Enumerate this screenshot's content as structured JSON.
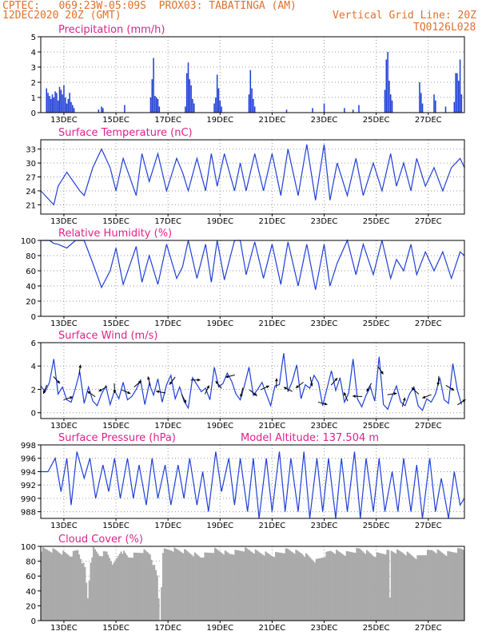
{
  "header": {
    "line1_left": "CPTEC:   069:23W-05:09S  PROX03: TABATINGA (AM)",
    "line2_left": "12DEC2020 20Z (GMT)",
    "line2_right": "Vertical Grid Line: 20Z",
    "line3_right": "TQ0126L028"
  },
  "colors": {
    "header": "#e0702a",
    "title": "#e0208a",
    "line": "#1f3fd6",
    "cloud": "#aaaaaa",
    "grid": "#999999"
  },
  "date_ticks": [
    "13DEC",
    "15DEC",
    "17DEC",
    "19DEC",
    "21DEC",
    "23DEC",
    "25DEC",
    "27DEC"
  ],
  "chart_data": [
    {
      "type": "bar",
      "title": "Precipitation (mm/h)",
      "ylim": [
        0,
        5
      ],
      "yticks": [
        "0",
        "1",
        "2",
        "3",
        "4",
        "5"
      ],
      "x_unit": "hours since 12DEC2020 20Z",
      "points": [
        [
          4,
          1.6
        ],
        [
          5,
          1.3
        ],
        [
          6,
          1.1
        ],
        [
          7,
          0.9
        ],
        [
          8,
          1.2
        ],
        [
          9,
          1.0
        ],
        [
          10,
          1.4
        ],
        [
          11,
          1.3
        ],
        [
          12,
          0.8
        ],
        [
          13,
          1.7
        ],
        [
          14,
          1.5
        ],
        [
          15,
          1.2
        ],
        [
          16,
          1.8
        ],
        [
          17,
          1.0
        ],
        [
          18,
          0.6
        ],
        [
          19,
          0.9
        ],
        [
          20,
          1.3
        ],
        [
          21,
          0.7
        ],
        [
          22,
          0.5
        ],
        [
          23,
          0.3
        ],
        [
          40,
          0.2
        ],
        [
          42,
          0.4
        ],
        [
          43,
          0.3
        ],
        [
          58,
          0.5
        ],
        [
          76,
          1.0
        ],
        [
          77,
          2.2
        ],
        [
          78,
          3.6
        ],
        [
          79,
          1.1
        ],
        [
          80,
          1.0
        ],
        [
          81,
          0.9
        ],
        [
          82,
          0.4
        ],
        [
          100,
          0.4
        ],
        [
          101,
          2.6
        ],
        [
          102,
          3.3
        ],
        [
          103,
          2.2
        ],
        [
          104,
          1.8
        ],
        [
          105,
          0.9
        ],
        [
          106,
          0.6
        ],
        [
          120,
          0.6
        ],
        [
          121,
          1.0
        ],
        [
          122,
          2.5
        ],
        [
          123,
          1.6
        ],
        [
          124,
          0.8
        ],
        [
          125,
          0.4
        ],
        [
          144,
          1.2
        ],
        [
          145,
          2.8
        ],
        [
          146,
          1.6
        ],
        [
          147,
          0.9
        ],
        [
          148,
          0.4
        ],
        [
          170,
          0.2
        ],
        [
          188,
          0.3
        ],
        [
          196,
          0.6
        ],
        [
          210,
          0.3
        ],
        [
          216,
          0.2
        ],
        [
          220,
          0.5
        ],
        [
          238,
          1.5
        ],
        [
          239,
          3.5
        ],
        [
          240,
          4.0
        ],
        [
          241,
          2.1
        ],
        [
          242,
          1.2
        ],
        [
          243,
          0.8
        ],
        [
          262,
          2.0
        ],
        [
          263,
          1.3
        ],
        [
          264,
          0.6
        ],
        [
          272,
          1.2
        ],
        [
          273,
          0.8
        ],
        [
          280,
          0.4
        ],
        [
          286,
          0.7
        ],
        [
          287,
          2.6
        ],
        [
          288,
          2.6
        ],
        [
          289,
          2.1
        ],
        [
          290,
          3.5
        ],
        [
          291,
          1.2
        ]
      ]
    },
    {
      "type": "line",
      "title": "Surface Temperature (nC)",
      "ylim": [
        19,
        35
      ],
      "yticks": [
        "21",
        "24",
        "27",
        "30",
        "33"
      ],
      "x_unit": "hours since 12DEC2020 20Z",
      "series": [
        {
          "x": [
            0,
            6,
            9,
            12,
            18,
            27,
            30,
            36,
            42,
            48,
            52,
            57,
            66,
            70,
            75,
            81,
            87,
            94,
            98,
            102,
            108,
            114,
            118,
            122,
            127,
            134,
            138,
            142,
            148,
            154,
            160,
            166,
            171,
            178,
            184,
            190,
            196,
            200,
            205,
            212,
            218,
            223,
            230,
            236,
            242,
            246,
            251,
            256,
            260,
            266,
            272,
            278,
            284,
            290,
            293
          ],
          "y": [
            24,
            22,
            21,
            25,
            28,
            24,
            23,
            29,
            33,
            29,
            24,
            31,
            23,
            32,
            26,
            32,
            24,
            31,
            28,
            24,
            31,
            24,
            32,
            25,
            32,
            24,
            30,
            24,
            32,
            24,
            32,
            23,
            33,
            23,
            34,
            22,
            34,
            22,
            30,
            23,
            31,
            23,
            30,
            24,
            32,
            25,
            30,
            24,
            31,
            25,
            29,
            24,
            29,
            31,
            29
          ]
        }
      ]
    },
    {
      "type": "line",
      "title": "Relative Humidity (%)",
      "ylim": [
        0,
        100
      ],
      "yticks": [
        "0",
        "20",
        "40",
        "60",
        "80",
        "100"
      ],
      "x_unit": "hours since 12DEC2020 20Z",
      "series": [
        {
          "x": [
            0,
            6,
            9,
            12,
            18,
            24,
            30,
            36,
            42,
            48,
            52,
            57,
            66,
            70,
            75,
            81,
            87,
            94,
            98,
            102,
            108,
            114,
            118,
            122,
            127,
            134,
            138,
            142,
            148,
            154,
            160,
            166,
            171,
            178,
            184,
            190,
            196,
            200,
            205,
            212,
            218,
            223,
            230,
            236,
            242,
            246,
            251,
            256,
            260,
            266,
            272,
            278,
            284,
            290,
            293
          ],
          "y": [
            100,
            100,
            96,
            95,
            90,
            100,
            100,
            70,
            38,
            60,
            90,
            42,
            92,
            45,
            80,
            42,
            95,
            50,
            65,
            100,
            50,
            95,
            45,
            100,
            48,
            100,
            100,
            55,
            98,
            50,
            95,
            42,
            98,
            40,
            95,
            35,
            95,
            40,
            70,
            100,
            55,
            95,
            55,
            100,
            50,
            75,
            60,
            95,
            55,
            85,
            60,
            85,
            50,
            85,
            80
          ]
        }
      ]
    },
    {
      "type": "line",
      "title": "Surface Wind (m/s)",
      "ylim": [
        -0.5,
        6
      ],
      "yticks": [
        "0",
        "2",
        "4",
        "6"
      ],
      "x_unit": "hours since 12DEC2020 20Z",
      "series": [
        {
          "x": [
            0,
            3,
            6,
            9,
            12,
            15,
            18,
            21,
            24,
            27,
            30,
            33,
            36,
            39,
            42,
            45,
            48,
            51,
            54,
            57,
            60,
            63,
            66,
            69,
            72,
            75,
            78,
            81,
            84,
            87,
            90,
            93,
            96,
            99,
            102,
            105,
            108,
            111,
            114,
            117,
            120,
            123,
            126,
            129,
            132,
            135,
            138,
            141,
            144,
            147,
            150,
            153,
            156,
            159,
            162,
            165,
            168,
            171,
            174,
            177,
            180,
            183,
            186,
            189,
            192,
            195,
            198,
            201,
            204,
            207,
            210,
            213,
            216,
            219,
            222,
            225,
            228,
            231,
            234,
            237,
            240,
            243,
            246,
            249,
            252,
            255,
            258,
            261,
            264,
            267,
            270,
            273,
            276,
            279,
            282,
            285,
            288,
            291
          ],
          "y": [
            2.3,
            1.8,
            2.6,
            4.6,
            1.6,
            2.2,
            1.1,
            0.9,
            2.1,
            3.5,
            0.8,
            2.2,
            1.0,
            0.6,
            1.6,
            2.3,
            0.7,
            1.9,
            1.2,
            2.6,
            1.1,
            1.4,
            2.0,
            2.8,
            0.7,
            2.5,
            1.5,
            2.9,
            0.9,
            2.4,
            3.2,
            1.2,
            2.2,
            1.0,
            0.4,
            3.0,
            2.4,
            1.8,
            2.1,
            1.1,
            3.9,
            2.2,
            2.5,
            3.4,
            2.7,
            1.6,
            1.1,
            2.4,
            3.9,
            1.5,
            2.0,
            2.6,
            1.6,
            0.6,
            2.3,
            2.4,
            5.1,
            1.8,
            2.7,
            4.1,
            1.2,
            2.4,
            2.1,
            3.2,
            2.6,
            0.6,
            2.1,
            3.6,
            1.9,
            3.0,
            0.9,
            1.7,
            4.6,
            1.2,
            0.5,
            1.5,
            2.2,
            1.0,
            4.8,
            0.7,
            0.3,
            1.4,
            2.3,
            0.9,
            0.6,
            1.6,
            2.2,
            0.6,
            0.2,
            1.2,
            0.9,
            1.6,
            3.0,
            1.1,
            0.8,
            4.2,
            2.0,
            0.7
          ]
        }
      ]
    },
    {
      "type": "line",
      "title": "Surface Pressure (hPa)",
      "annotation": "Model Altitude: 137.504 m",
      "ylim": [
        987,
        998
      ],
      "yticks": [
        "988",
        "990",
        "992",
        "994",
        "996",
        "998"
      ],
      "x_unit": "hours since 12DEC2020 20Z",
      "series": [
        {
          "x": [
            0,
            5,
            10,
            14,
            18,
            21,
            25,
            30,
            34,
            38,
            43,
            47,
            51,
            55,
            60,
            64,
            68,
            73,
            77,
            81,
            86,
            90,
            95,
            99,
            103,
            108,
            112,
            116,
            121,
            125,
            130,
            134,
            138,
            143,
            147,
            151,
            156,
            160,
            165,
            169,
            173,
            178,
            182,
            186,
            191,
            195,
            199,
            204,
            208,
            212,
            217,
            221,
            225,
            230,
            234,
            238,
            243,
            247,
            251,
            256,
            260,
            264,
            269,
            273,
            277,
            282,
            286,
            290,
            293
          ],
          "y": [
            994,
            994,
            996,
            991,
            996,
            989,
            997,
            993,
            996,
            990,
            995,
            991,
            996,
            990,
            996,
            990,
            995,
            989,
            996,
            990,
            995,
            989,
            995,
            990,
            996,
            989,
            994,
            988,
            997,
            991,
            996,
            989,
            996,
            988,
            996,
            987,
            996,
            988,
            997,
            988,
            996,
            988,
            997,
            987,
            996,
            988,
            996,
            987,
            996,
            988,
            997,
            987,
            996,
            988,
            996,
            988,
            994,
            988,
            996,
            988,
            995,
            987,
            996,
            988,
            993,
            987,
            994,
            989,
            990
          ]
        }
      ]
    },
    {
      "type": "area",
      "title": "Cloud Cover (%)",
      "ylim": [
        0,
        100
      ],
      "yticks": [
        "0",
        "20",
        "40",
        "60",
        "80",
        "100"
      ],
      "x_unit": "hours since 12DEC2020 20Z",
      "series": [
        {
          "x": [
            0,
            10,
            20,
            25,
            30,
            32,
            34,
            36,
            40,
            45,
            50,
            55,
            60,
            70,
            75,
            80,
            82,
            84,
            90,
            100,
            110,
            120,
            130,
            140,
            150,
            160,
            170,
            180,
            190,
            200,
            210,
            220,
            230,
            240,
            241,
            242,
            250,
            260,
            270,
            280,
            290,
            293
          ],
          "y": [
            96,
            94,
            88,
            95,
            70,
            30,
            80,
            96,
            88,
            92,
            75,
            95,
            85,
            94,
            90,
            60,
            0,
            94,
            96,
            93,
            86,
            95,
            90,
            96,
            92,
            88,
            95,
            91,
            80,
            94,
            90,
            96,
            88,
            93,
            30,
            94,
            92,
            85,
            95,
            90,
            96,
            96
          ]
        }
      ]
    }
  ]
}
